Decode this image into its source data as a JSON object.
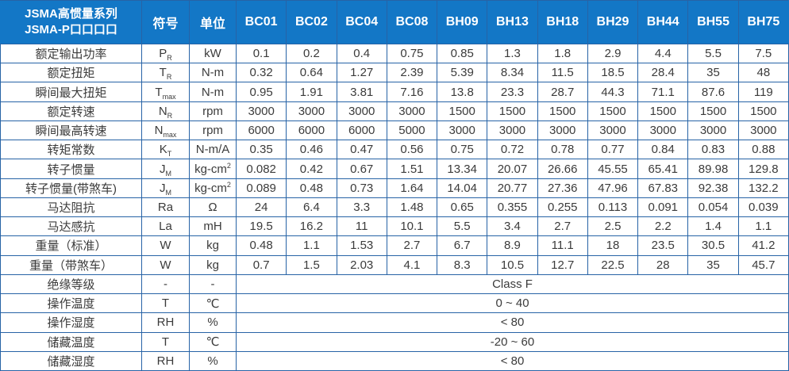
{
  "colors": {
    "header_bg": "#1377C6",
    "header_grid": "#0E5A9B",
    "grid": "#2763A6",
    "text": "#3B3B3B"
  },
  "table": {
    "title_line1": "JSMA高惯量系列",
    "title_line2": "JSMA-P口口口口",
    "symbol_header": "符号",
    "unit_header": "单位",
    "columns": [
      "BC01",
      "BC02",
      "BC04",
      "BC08",
      "BH09",
      "BH13",
      "BH18",
      "BH29",
      "BH44",
      "BH55",
      "BH75"
    ],
    "rows": [
      {
        "label": "额定输出功率",
        "symbol": "P_R",
        "unit": "kW",
        "values": [
          "0.1",
          "0.2",
          "0.4",
          "0.75",
          "0.85",
          "1.3",
          "1.8",
          "2.9",
          "4.4",
          "5.5",
          "7.5"
        ]
      },
      {
        "label": "额定扭矩",
        "symbol": "T_R",
        "unit": "N-m",
        "values": [
          "0.32",
          "0.64",
          "1.27",
          "2.39",
          "5.39",
          "8.34",
          "11.5",
          "18.5",
          "28.4",
          "35",
          "48"
        ]
      },
      {
        "label": "瞬间最大扭矩",
        "symbol": "T_max",
        "unit": "N-m",
        "values": [
          "0.95",
          "1.91",
          "3.81",
          "7.16",
          "13.8",
          "23.3",
          "28.7",
          "44.3",
          "71.1",
          "87.6",
          "119"
        ]
      },
      {
        "label": "额定转速",
        "symbol": "N_R",
        "unit": "rpm",
        "values": [
          "3000",
          "3000",
          "3000",
          "3000",
          "1500",
          "1500",
          "1500",
          "1500",
          "1500",
          "1500",
          "1500"
        ]
      },
      {
        "label": "瞬间最高转速",
        "symbol": "N_max",
        "unit": "rpm",
        "values": [
          "6000",
          "6000",
          "6000",
          "5000",
          "3000",
          "3000",
          "3000",
          "3000",
          "3000",
          "3000",
          "3000"
        ]
      },
      {
        "label": "转矩常数",
        "symbol": "K_T",
        "unit": "N-m/A",
        "values": [
          "0.35",
          "0.46",
          "0.47",
          "0.56",
          "0.75",
          "0.72",
          "0.78",
          "0.77",
          "0.84",
          "0.83",
          "0.88"
        ]
      },
      {
        "label": "转子惯量",
        "symbol": "J_M",
        "unit": "kg-cm^2",
        "values": [
          "0.082",
          "0.42",
          "0.67",
          "1.51",
          "13.34",
          "20.07",
          "26.66",
          "45.55",
          "65.41",
          "89.98",
          "129.8"
        ]
      },
      {
        "label": "转子惯量(带煞车)",
        "symbol": "J_M",
        "unit": "kg-cm^2",
        "values": [
          "0.089",
          "0.48",
          "0.73",
          "1.64",
          "14.04",
          "20.77",
          "27.36",
          "47.96",
          "67.83",
          "92.38",
          "132.2"
        ]
      },
      {
        "label": "马达阻抗",
        "symbol": "Ra",
        "unit": "Ω",
        "values": [
          "24",
          "6.4",
          "3.3",
          "1.48",
          "0.65",
          "0.355",
          "0.255",
          "0.113",
          "0.091",
          "0.054",
          "0.039"
        ]
      },
      {
        "label": "马达感抗",
        "symbol": "La",
        "unit": "mH",
        "values": [
          "19.5",
          "16.2",
          "11",
          "10.1",
          "5.5",
          "3.4",
          "2.7",
          "2.5",
          "2.2",
          "1.4",
          "1.1"
        ]
      },
      {
        "label": "重量（标准）",
        "symbol": "W",
        "unit": "kg",
        "values": [
          "0.48",
          "1.1",
          "1.53",
          "2.7",
          "6.7",
          "8.9",
          "11.1",
          "18",
          "23.5",
          "30.5",
          "41.2"
        ]
      },
      {
        "label": "重量（带煞车）",
        "symbol": "W",
        "unit": "kg",
        "values": [
          "0.7",
          "1.5",
          "2.03",
          "4.1",
          "8.3",
          "10.5",
          "12.7",
          "22.5",
          "28",
          "35",
          "45.7"
        ]
      },
      {
        "label": "绝缘等级",
        "symbol": "-",
        "unit": "-",
        "merged": "Class F"
      },
      {
        "label": "操作温度",
        "symbol": "T",
        "unit": "℃",
        "merged": "0 ~ 40"
      },
      {
        "label": "操作湿度",
        "symbol": "RH",
        "unit": "%",
        "merged": "< 80"
      },
      {
        "label": "储藏温度",
        "symbol": "T",
        "unit": "℃",
        "merged": "-20 ~ 60"
      },
      {
        "label": "储藏湿度",
        "symbol": "RH",
        "unit": "%",
        "merged": "< 80"
      }
    ]
  }
}
